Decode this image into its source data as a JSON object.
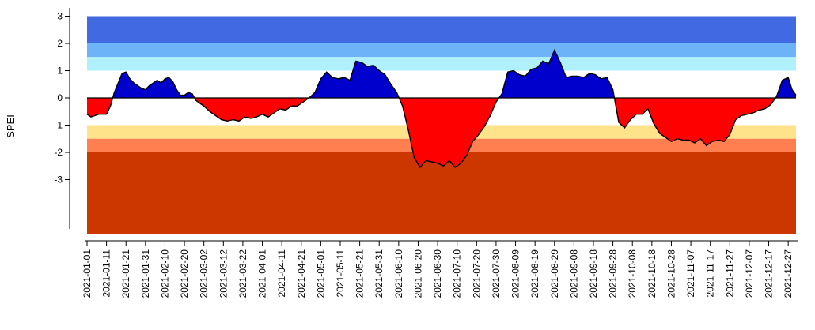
{
  "chart_data": {
    "type": "area",
    "title": "",
    "xlabel": "",
    "ylabel": "SPEI",
    "ylim": [
      -5,
      3.3
    ],
    "yticks": [
      "3",
      "2",
      "1",
      "0",
      "-1",
      "-2",
      "-3"
    ],
    "ytick_values": [
      3,
      2,
      1,
      0,
      -1,
      -2,
      -3
    ],
    "x_tick_labels": [
      "2021-01-01",
      "2021-01-11",
      "2021-01-21",
      "2021-01-31",
      "2021-02-10",
      "2021-02-20",
      "2021-03-02",
      "2021-03-12",
      "2021-03-22",
      "2021-04-01",
      "2021-04-11",
      "2021-04-21",
      "2021-05-01",
      "2021-05-11",
      "2021-05-21",
      "2021-05-31",
      "2021-06-10",
      "2021-06-20",
      "2021-06-30",
      "2021-07-10",
      "2021-07-20",
      "2021-07-30",
      "2021-08-09",
      "2021-08-19",
      "2021-08-29",
      "2021-09-08",
      "2021-09-18",
      "2021-09-28",
      "2021-10-08",
      "2021-10-18",
      "2021-10-28",
      "2021-11-07",
      "2021-11-17",
      "2021-11-27",
      "2021-12-07",
      "2021-12-17",
      "2021-12-27"
    ],
    "x_range": [
      "2021-01-01",
      "2021-12-31"
    ],
    "grid": false,
    "positive_color": "#0000cc",
    "negative_color": "#ff0000",
    "bands": [
      {
        "from": 2,
        "to": 3,
        "color": "#4169e1"
      },
      {
        "from": 1.5,
        "to": 2,
        "color": "#6cb3f7"
      },
      {
        "from": 1,
        "to": 1.5,
        "color": "#b0f0fc"
      },
      {
        "from": -1.5,
        "to": -1,
        "color": "#ffe38a"
      },
      {
        "from": -2,
        "to": -1.5,
        "color": "#ff7f50"
      },
      {
        "from": -5,
        "to": -2,
        "color": "#cc3700"
      }
    ],
    "series": [
      {
        "x": [
          "2021-01-01",
          "2021-01-03",
          "2021-01-05",
          "2021-01-07",
          "2021-01-09",
          "2021-01-11",
          "2021-01-13",
          "2021-01-15",
          "2021-01-17",
          "2021-01-19",
          "2021-01-21",
          "2021-01-23",
          "2021-01-25",
          "2021-01-27",
          "2021-01-29",
          "2021-01-31",
          "2021-02-02",
          "2021-02-04",
          "2021-02-06",
          "2021-02-08",
          "2021-02-10",
          "2021-02-12",
          "2021-02-14",
          "2021-02-16",
          "2021-02-18",
          "2021-02-20",
          "2021-02-22",
          "2021-02-24",
          "2021-02-26",
          "2021-02-28",
          "2021-03-02",
          "2021-03-05",
          "2021-03-08",
          "2021-03-11",
          "2021-03-14",
          "2021-03-17",
          "2021-03-20",
          "2021-03-23",
          "2021-03-26",
          "2021-03-29",
          "2021-04-01",
          "2021-04-04",
          "2021-04-07",
          "2021-04-10",
          "2021-04-13",
          "2021-04-16",
          "2021-04-19",
          "2021-04-22",
          "2021-04-25",
          "2021-04-28",
          "2021-05-01",
          "2021-05-04",
          "2021-05-07",
          "2021-05-10",
          "2021-05-13",
          "2021-05-16",
          "2021-05-19",
          "2021-05-22",
          "2021-05-25",
          "2021-05-28",
          "2021-05-31",
          "2021-06-03",
          "2021-06-06",
          "2021-06-09",
          "2021-06-12",
          "2021-06-15",
          "2021-06-18",
          "2021-06-21",
          "2021-06-24",
          "2021-06-27",
          "2021-06-30",
          "2021-07-03",
          "2021-07-06",
          "2021-07-09",
          "2021-07-12",
          "2021-07-15",
          "2021-07-18",
          "2021-07-21",
          "2021-07-24",
          "2021-07-27",
          "2021-07-30",
          "2021-08-02",
          "2021-08-05",
          "2021-08-08",
          "2021-08-11",
          "2021-08-14",
          "2021-08-17",
          "2021-08-20",
          "2021-08-23",
          "2021-08-26",
          "2021-08-29",
          "2021-09-01",
          "2021-09-04",
          "2021-09-07",
          "2021-09-10",
          "2021-09-13",
          "2021-09-16",
          "2021-09-19",
          "2021-09-22",
          "2021-09-25",
          "2021-09-28",
          "2021-10-01",
          "2021-10-04",
          "2021-10-07",
          "2021-10-10",
          "2021-10-13",
          "2021-10-16",
          "2021-10-19",
          "2021-10-22",
          "2021-10-25",
          "2021-10-28",
          "2021-10-31",
          "2021-11-03",
          "2021-11-06",
          "2021-11-09",
          "2021-11-12",
          "2021-11-15",
          "2021-11-18",
          "2021-11-21",
          "2021-11-24",
          "2021-11-27",
          "2021-11-30",
          "2021-12-03",
          "2021-12-06",
          "2021-12-09",
          "2021-12-12",
          "2021-12-15",
          "2021-12-18",
          "2021-12-21",
          "2021-12-24",
          "2021-12-27",
          "2021-12-29",
          "2021-12-31"
        ],
        "values": [
          -0.6,
          -0.7,
          -0.65,
          -0.6,
          -0.6,
          -0.6,
          -0.3,
          0.2,
          0.55,
          0.9,
          0.95,
          0.7,
          0.55,
          0.45,
          0.35,
          0.3,
          0.45,
          0.55,
          0.65,
          0.55,
          0.7,
          0.75,
          0.6,
          0.3,
          0.1,
          0.1,
          0.2,
          0.15,
          -0.1,
          -0.2,
          -0.3,
          -0.5,
          -0.65,
          -0.8,
          -0.85,
          -0.8,
          -0.85,
          -0.7,
          -0.75,
          -0.7,
          -0.6,
          -0.7,
          -0.55,
          -0.4,
          -0.45,
          -0.3,
          -0.3,
          -0.15,
          0.0,
          0.2,
          0.7,
          0.95,
          0.75,
          0.7,
          0.75,
          0.65,
          1.35,
          1.3,
          1.15,
          1.2,
          1.0,
          0.85,
          0.5,
          0.2,
          -0.3,
          -1.2,
          -2.2,
          -2.55,
          -2.3,
          -2.35,
          -2.4,
          -2.5,
          -2.3,
          -2.55,
          -2.4,
          -2.1,
          -1.6,
          -1.35,
          -1.05,
          -0.65,
          -0.15,
          0.15,
          0.95,
          1.0,
          0.85,
          0.8,
          1.05,
          1.1,
          1.35,
          1.25,
          1.75,
          1.3,
          0.75,
          0.8,
          0.8,
          0.75,
          0.9,
          0.85,
          0.7,
          0.75,
          0.3,
          -0.9,
          -1.1,
          -0.8,
          -0.6,
          -0.6,
          -0.4,
          -0.95,
          -1.3,
          -1.45,
          -1.6,
          -1.5,
          -1.55,
          -1.55,
          -1.65,
          -1.5,
          -1.75,
          -1.6,
          -1.55,
          -1.6,
          -1.35,
          -0.8,
          -0.65,
          -0.6,
          -0.55,
          -0.45,
          -0.4,
          -0.25,
          0.05,
          0.65,
          0.75,
          0.3,
          0.1
        ]
      }
    ]
  }
}
